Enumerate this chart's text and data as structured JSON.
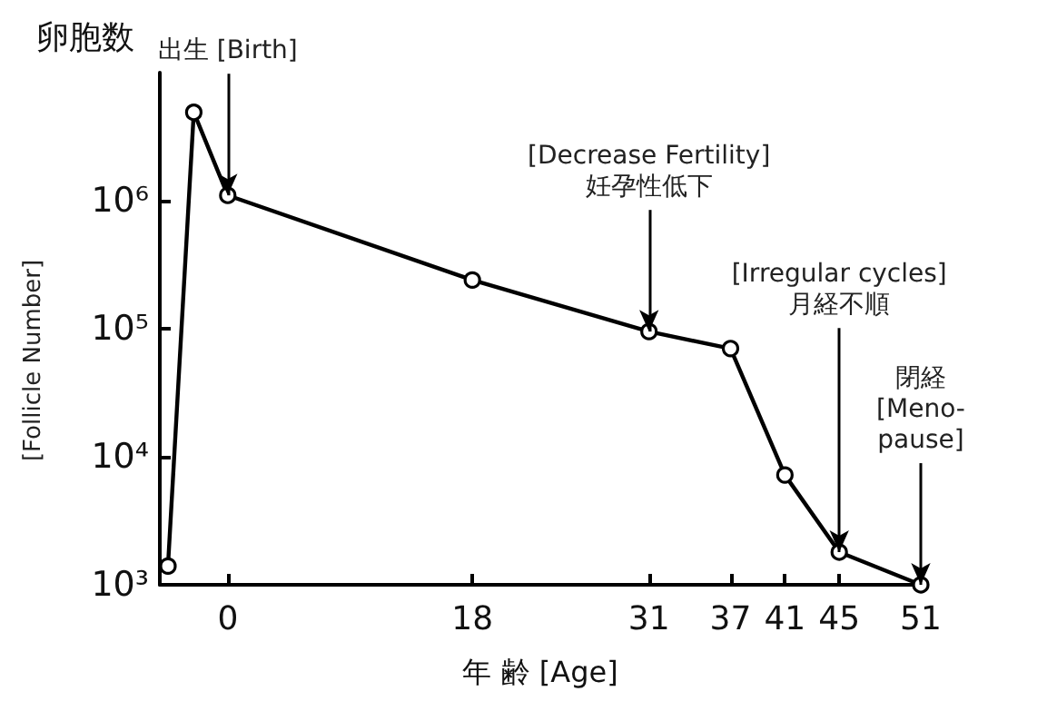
{
  "chart_data": {
    "type": "line",
    "xlabel": "年 齢 [Age]",
    "ylabel": "卵胞数",
    "x": [
      -4.4,
      -2.5,
      0,
      18,
      31,
      37,
      41,
      45,
      51
    ],
    "series": [
      {
        "color": "#000000",
        "values": [
          1400,
          4900000,
          1100000,
          240000,
          95000,
          70000,
          7200,
          1800,
          1000
        ]
      }
    ],
    "xlim": [
      -5,
      51
    ],
    "xticks": [
      0,
      18,
      31,
      37,
      41,
      45,
      51
    ],
    "ylim": [
      1000,
      10000000
    ],
    "yticks": [
      {
        "value": 1000,
        "label": "10³"
      },
      {
        "value": 10000,
        "label": "10⁴"
      },
      {
        "value": 100000,
        "label": "10⁵"
      },
      {
        "value": 1000000,
        "label": "10⁶"
      }
    ],
    "log": "y",
    "grid": false,
    "marker": "circle",
    "line_style": "solid",
    "annotations": [
      "[Follicle Number]",
      {
        "text": "出生 [Birth]",
        "x": 0,
        "y": 1100000
      },
      {
        "text": "[Decrease Fertility]\n妊孕性低下",
        "x": 31,
        "y": 95000
      },
      {
        "text": "[Irregular cycles]\n月経不順",
        "x": 45,
        "y": 1800
      },
      {
        "text": "閉経\n[Meno-\npause]",
        "x": 51,
        "y": 1000
      }
    ]
  }
}
